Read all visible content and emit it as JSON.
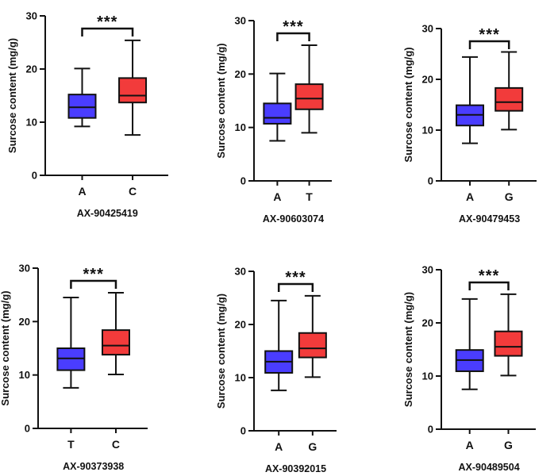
{
  "figure": {
    "colors": {
      "group1": "#4a3dff",
      "group2": "#f23b3b",
      "stroke": "#111111"
    }
  },
  "chart_data": [
    {
      "type": "box",
      "ylabel": "Surcose content (mg/g)",
      "xlabel": "AX-90425419",
      "ylim": [
        0,
        30
      ],
      "yticks": [
        "0",
        "10",
        "20",
        "30"
      ],
      "categories": [
        "A",
        "C"
      ],
      "significance": "***",
      "boxes": [
        {
          "category": "A",
          "min": 9.2,
          "q1": 10.8,
          "median": 12.8,
          "q3": 15.2,
          "max": 20.1
        },
        {
          "category": "C",
          "min": 7.6,
          "q1": 13.7,
          "median": 15.0,
          "q3": 18.3,
          "max": 25.4
        }
      ]
    },
    {
      "type": "box",
      "ylabel": "Surcose content (mg/g)",
      "xlabel": "AX-90603074",
      "ylim": [
        0,
        30
      ],
      "yticks": [
        "0",
        "10",
        "20",
        "30"
      ],
      "categories": [
        "A",
        "T"
      ],
      "significance": "***",
      "boxes": [
        {
          "category": "A",
          "min": 7.5,
          "q1": 10.7,
          "median": 11.8,
          "q3": 14.5,
          "max": 20.1
        },
        {
          "category": "T",
          "min": 9.0,
          "q1": 13.4,
          "median": 15.4,
          "q3": 18.1,
          "max": 25.4
        }
      ]
    },
    {
      "type": "box",
      "ylabel": "Surcose content (mg/g)",
      "xlabel": "AX-90479453",
      "ylim": [
        0,
        30
      ],
      "yticks": [
        "0",
        "10",
        "20",
        "30"
      ],
      "categories": [
        "A",
        "G"
      ],
      "significance": "***",
      "boxes": [
        {
          "category": "A",
          "min": 7.4,
          "q1": 10.9,
          "median": 13.0,
          "q3": 14.9,
          "max": 24.4
        },
        {
          "category": "G",
          "min": 10.1,
          "q1": 13.8,
          "median": 15.5,
          "q3": 18.3,
          "max": 25.4
        }
      ]
    },
    {
      "type": "box",
      "ylabel": "Surcose content (mg/g)",
      "xlabel": "AX-90373938",
      "ylim": [
        0,
        30
      ],
      "yticks": [
        "0",
        "10",
        "20",
        "30"
      ],
      "categories": [
        "T",
        "C"
      ],
      "significance": "***",
      "boxes": [
        {
          "category": "T",
          "min": 7.6,
          "q1": 10.9,
          "median": 13.1,
          "q3": 15.0,
          "max": 24.5
        },
        {
          "category": "C",
          "min": 10.1,
          "q1": 13.8,
          "median": 15.5,
          "q3": 18.4,
          "max": 25.4
        }
      ]
    },
    {
      "type": "box",
      "ylabel": "Surcose content (mg/g)",
      "xlabel": "AX-90392015",
      "ylim": [
        0,
        30
      ],
      "yticks": [
        "0",
        "10",
        "20",
        "30"
      ],
      "categories": [
        "A",
        "G"
      ],
      "significance": "***",
      "boxes": [
        {
          "category": "A",
          "min": 7.6,
          "q1": 10.9,
          "median": 13.0,
          "q3": 15.0,
          "max": 24.5
        },
        {
          "category": "G",
          "min": 10.1,
          "q1": 13.8,
          "median": 15.5,
          "q3": 18.4,
          "max": 25.4
        }
      ]
    },
    {
      "type": "box",
      "ylabel": "Surcose content (mg/g)",
      "xlabel": "AX-90489504",
      "ylim": [
        0,
        30
      ],
      "yticks": [
        "0",
        "10",
        "20",
        "30"
      ],
      "categories": [
        "A",
        "G"
      ],
      "significance": "***",
      "boxes": [
        {
          "category": "A",
          "min": 7.5,
          "q1": 10.9,
          "median": 13.0,
          "q3": 14.9,
          "max": 24.5
        },
        {
          "category": "G",
          "min": 10.1,
          "q1": 13.8,
          "median": 15.5,
          "q3": 18.4,
          "max": 25.4
        }
      ]
    }
  ]
}
